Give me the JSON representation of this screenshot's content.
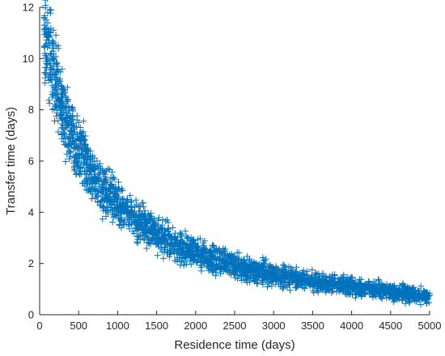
{
  "chart_data": {
    "type": "scatter",
    "title": "",
    "xlabel": "Residence time (days)",
    "ylabel": "Transfer time (days)",
    "xlim": [
      0,
      5000
    ],
    "ylim": [
      0,
      12
    ],
    "xticks": [
      0,
      500,
      1000,
      1500,
      2000,
      2500,
      3000,
      3500,
      4000,
      4500,
      5000
    ],
    "yticks": [
      0,
      2,
      4,
      6,
      8,
      10,
      12
    ],
    "grid": false,
    "marker": "+",
    "color": "#0072BD",
    "series": [
      {
        "trend_x": [
          60,
          100,
          150,
          200,
          250,
          300,
          400,
          500,
          600,
          700,
          800,
          900,
          1000,
          1200,
          1400,
          1600,
          1800,
          2000,
          2500,
          3000,
          3500,
          4000,
          4500,
          5000
        ],
        "trend_y": [
          11.3,
          10.5,
          9.8,
          9.1,
          8.5,
          8.0,
          7.2,
          6.5,
          5.9,
          5.4,
          4.95,
          4.6,
          4.3,
          3.75,
          3.3,
          2.95,
          2.65,
          2.4,
          1.9,
          1.55,
          1.3,
          1.1,
          0.9,
          0.75
        ],
        "points": [
          [
            60,
            11.6
          ],
          [
            80,
            11.2
          ],
          [
            100,
            10.9
          ],
          [
            120,
            10.5
          ],
          [
            150,
            10.2
          ],
          [
            180,
            9.7
          ],
          [
            200,
            9.4
          ],
          [
            250,
            8.4
          ],
          [
            300,
            7.9
          ],
          [
            350,
            7.5
          ],
          [
            400,
            7.2
          ],
          [
            450,
            6.8
          ],
          [
            500,
            6.5
          ],
          [
            550,
            6.2
          ],
          [
            600,
            5.9
          ],
          [
            650,
            5.6
          ],
          [
            700,
            5.4
          ],
          [
            750,
            5.2
          ],
          [
            800,
            4.9
          ],
          [
            850,
            4.8
          ],
          [
            900,
            4.6
          ],
          [
            950,
            4.4
          ],
          [
            1000,
            4.3
          ],
          [
            1100,
            4.0
          ],
          [
            1200,
            3.8
          ],
          [
            1300,
            3.5
          ],
          [
            1400,
            3.3
          ],
          [
            1500,
            3.1
          ],
          [
            1600,
            2.95
          ],
          [
            1700,
            2.8
          ],
          [
            1800,
            2.65
          ],
          [
            1900,
            2.5
          ],
          [
            2000,
            2.4
          ],
          [
            2200,
            2.2
          ],
          [
            2400,
            2.0
          ],
          [
            2600,
            1.8
          ],
          [
            2800,
            1.7
          ],
          [
            3000,
            1.55
          ],
          [
            3200,
            1.45
          ],
          [
            3400,
            1.35
          ],
          [
            3600,
            1.25
          ],
          [
            3800,
            1.15
          ],
          [
            4000,
            1.1
          ],
          [
            4200,
            1.0
          ],
          [
            4400,
            0.95
          ],
          [
            4600,
            0.85
          ],
          [
            4800,
            0.8
          ],
          [
            5000,
            0.75
          ],
          [
            65,
            10.2
          ],
          [
            110,
            9.3
          ],
          [
            160,
            8.6
          ],
          [
            220,
            8.1
          ],
          [
            280,
            7.3
          ],
          [
            330,
            6.9
          ],
          [
            380,
            6.4
          ],
          [
            440,
            6.0
          ],
          [
            520,
            5.6
          ],
          [
            580,
            5.2
          ],
          [
            640,
            4.9
          ],
          [
            720,
            4.7
          ],
          [
            780,
            4.4
          ],
          [
            880,
            4.1
          ],
          [
            960,
            3.9
          ],
          [
            1050,
            3.7
          ],
          [
            1150,
            3.5
          ],
          [
            1250,
            3.3
          ],
          [
            1350,
            3.0
          ],
          [
            1450,
            2.9
          ],
          [
            140,
            11.0
          ],
          [
            170,
            10.6
          ],
          [
            230,
            9.7
          ],
          [
            260,
            9.2
          ],
          [
            310,
            8.8
          ],
          [
            360,
            8.4
          ],
          [
            420,
            8.1
          ],
          [
            480,
            7.6
          ],
          [
            540,
            7.1
          ],
          [
            620,
            6.5
          ],
          [
            680,
            6.2
          ],
          [
            760,
            5.8
          ],
          [
            840,
            5.4
          ],
          [
            920,
            5.1
          ],
          [
            1020,
            4.9
          ],
          [
            1120,
            4.5
          ],
          [
            1220,
            4.2
          ],
          [
            1320,
            3.9
          ],
          [
            1420,
            3.7
          ],
          [
            1520,
            3.5
          ]
        ]
      }
    ]
  }
}
